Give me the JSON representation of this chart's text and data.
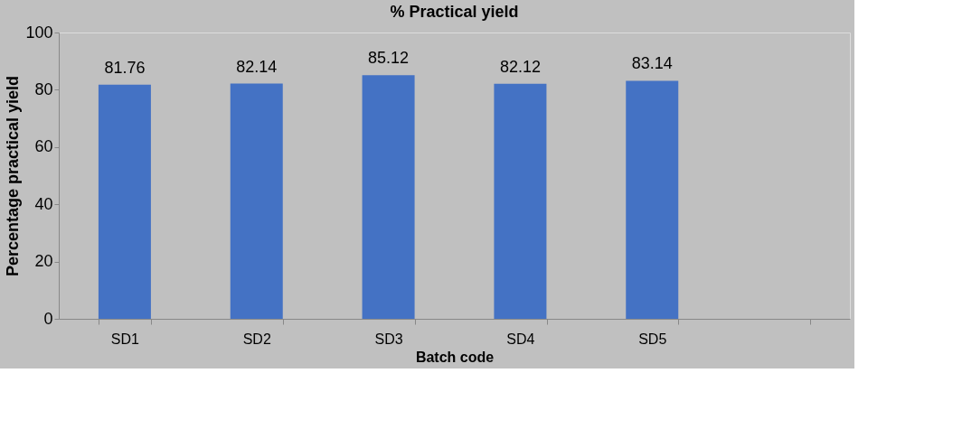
{
  "chart_data": {
    "type": "bar",
    "title": "% Practical yield",
    "xlabel": "Batch code",
    "ylabel": "Percentage practical yield",
    "categories": [
      "SD1",
      "SD2",
      "SD3",
      "SD4",
      "SD5",
      null
    ],
    "values": [
      81.76,
      82.14,
      85.12,
      82.12,
      83.14,
      null
    ],
    "color": "#4472c4",
    "ylim": [
      0,
      100
    ],
    "yticks": [
      0,
      20,
      40,
      60,
      80,
      100
    ],
    "grid": false,
    "data_labels": true
  }
}
